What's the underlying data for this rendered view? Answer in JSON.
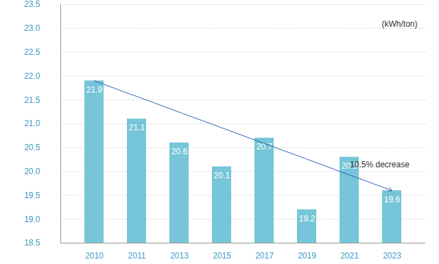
{
  "chart_data": {
    "type": "bar",
    "categories": [
      "2010",
      "2011",
      "2013",
      "2015",
      "2017",
      "2019",
      "2021",
      "2023"
    ],
    "values": [
      21.9,
      21.1,
      20.6,
      20.1,
      20.7,
      19.2,
      20.3,
      19.6
    ],
    "color": "#76c5d8",
    "ylim": [
      18.5,
      23.5
    ],
    "yticks": [
      18.5,
      {
        "value": 19,
        "label": "19.0"
      },
      19.5,
      {
        "value": 20,
        "label": "20.0"
      },
      20.5,
      {
        "value": 21,
        "label": "21.0"
      },
      21.5,
      {
        "value": 22,
        "label": "22.0"
      },
      22.5,
      {
        "value": 23,
        "label": "23.0"
      },
      23.5
    ],
    "grid": true,
    "data_labels": true,
    "y_label": "(kWh/ton)",
    "annotations": [
      {
        "text": "10.5% decrease"
      }
    ]
  }
}
